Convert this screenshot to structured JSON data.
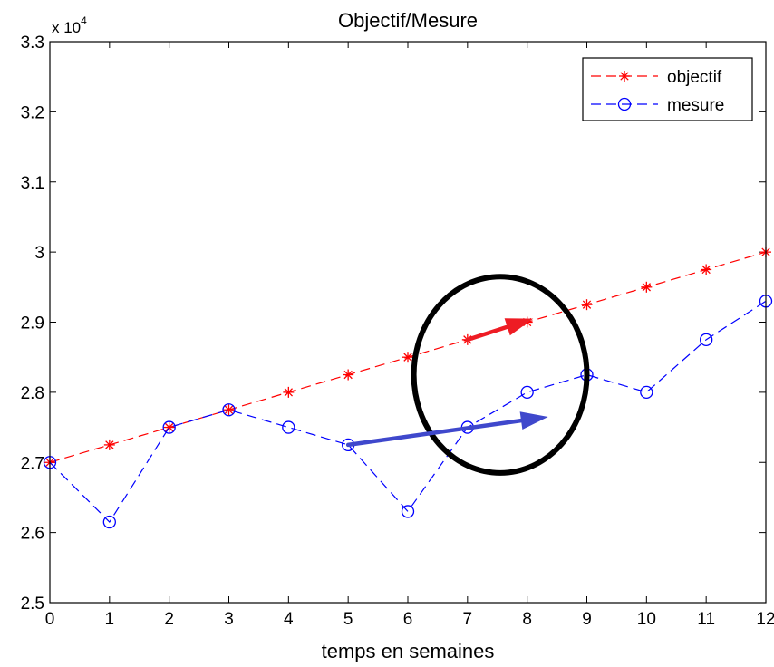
{
  "chart_data": {
    "type": "line",
    "title": "Objectif/Mesure",
    "xlabel": "temps en semaines",
    "ylabel": "",
    "y_multiplier_label": "x 10",
    "y_multiplier_exponent": "4",
    "x": [
      0,
      1,
      2,
      3,
      4,
      5,
      6,
      7,
      8,
      9,
      10,
      11,
      12
    ],
    "xlim": [
      0,
      12
    ],
    "ylim": [
      25000,
      33000
    ],
    "x_ticks": [
      0,
      1,
      2,
      3,
      4,
      5,
      6,
      7,
      8,
      9,
      10,
      11,
      12
    ],
    "x_tick_labels": [
      "0",
      "1",
      "2",
      "3",
      "4",
      "5",
      "6",
      "7",
      "8",
      "9",
      "10",
      "11",
      "12"
    ],
    "y_ticks": [
      25000,
      26000,
      27000,
      28000,
      29000,
      30000,
      31000,
      32000,
      33000
    ],
    "y_tick_labels": [
      "2.5",
      "2.6",
      "2.7",
      "2.8",
      "2.9",
      "3",
      "3.1",
      "3.2",
      "3.3"
    ],
    "grid": false,
    "legend_position": "top-right",
    "series": [
      {
        "name": "objectif",
        "color": "#ff0000",
        "line_style": "dashed",
        "marker": "asterisk",
        "values": [
          27000,
          27250,
          27500,
          27750,
          28000,
          28250,
          28500,
          28750,
          29000,
          29250,
          29500,
          29750,
          30000
        ]
      },
      {
        "name": "mesure",
        "color": "#0000ff",
        "line_style": "dashed",
        "marker": "circle",
        "values": [
          27000,
          26150,
          27500,
          27750,
          27500,
          27250,
          26300,
          27500,
          28000,
          28250,
          28000,
          28750,
          29300
        ]
      }
    ],
    "annotations": [
      {
        "type": "ellipse",
        "color": "#000000",
        "cx": 7.55,
        "cy": 28250,
        "rx": 1.45,
        "ry": 1400
      },
      {
        "type": "arrow",
        "color": "#ee1c24",
        "from": [
          7.0,
          28750
        ],
        "to": [
          8.1,
          29050
        ]
      },
      {
        "type": "arrow",
        "color": "#3f48cc",
        "from": [
          5.0,
          27250
        ],
        "to": [
          8.35,
          27650
        ]
      }
    ]
  }
}
